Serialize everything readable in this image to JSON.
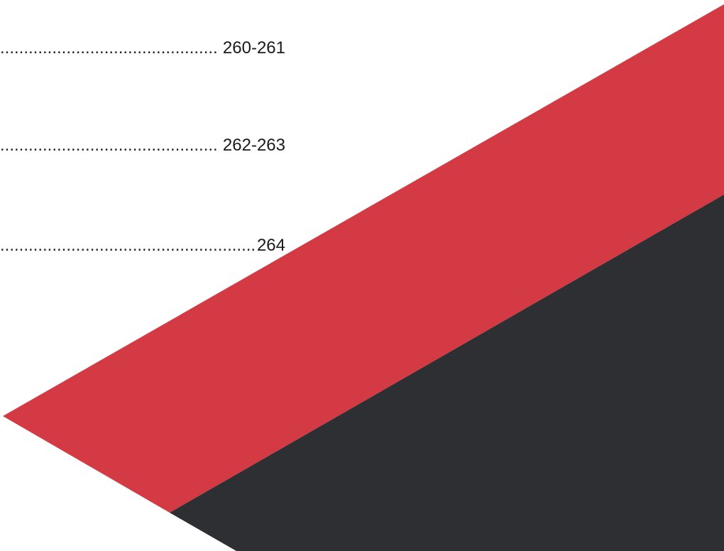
{
  "toc": {
    "entries": [
      {
        "page": "260-261"
      },
      {
        "page": "262-263"
      },
      {
        "page": "264"
      }
    ]
  },
  "colors": {
    "band_red": "#d43a43",
    "band_dark": "#2d2f32",
    "background": "#ffffff"
  }
}
